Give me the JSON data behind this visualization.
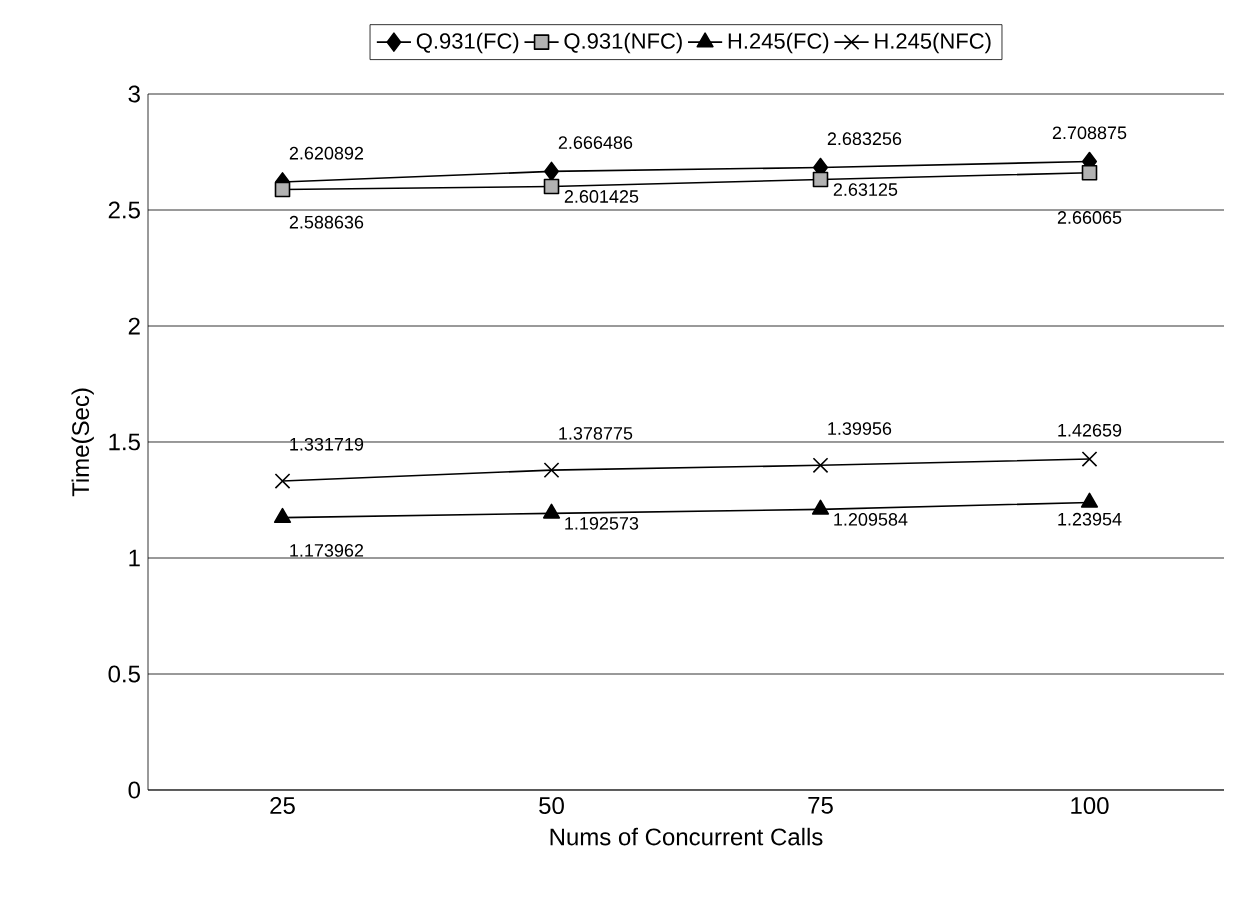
{
  "chart_data": {
    "type": "line",
    "xlabel": "Nums of Concurrent Calls",
    "ylabel": "Time(Sec)",
    "categories": [
      "25",
      "50",
      "75",
      "100"
    ],
    "series": [
      {
        "name": "Q.931(FC)",
        "color": "#000000",
        "marker": "diamond",
        "values": [
          2.620892,
          2.666486,
          2.683256,
          2.708875
        ]
      },
      {
        "name": "Q.931(NFC)",
        "color": "#000000",
        "marker": "square",
        "values": [
          2.588636,
          2.601425,
          2.63125,
          2.66065
        ]
      },
      {
        "name": "H.245(FC)",
        "color": "#000000",
        "marker": "triangle",
        "values": [
          1.173962,
          1.192573,
          1.209584,
          1.23954
        ]
      },
      {
        "name": "H.245(NFC)",
        "color": "#000000",
        "marker": "cross",
        "values": [
          1.331719,
          1.378775,
          1.39956,
          1.42659
        ]
      }
    ],
    "ylim": [
      0,
      3
    ],
    "yticks": [
      0,
      0.5,
      1,
      1.5,
      2,
      2.5,
      3
    ],
    "grid": "y",
    "legend": "top",
    "data_labels": true,
    "line_style": "solid"
  }
}
